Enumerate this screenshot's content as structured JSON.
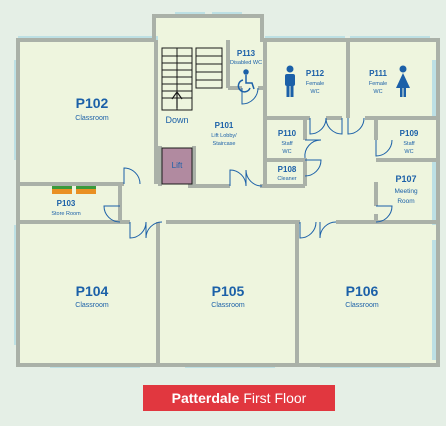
{
  "map": {
    "colors": {
      "background": "#e5efe6",
      "room_fill": "#eef5de",
      "wall": "#aab1a8",
      "window": "#bde0e4",
      "text": "#1b60a8",
      "lift": "#b18aa0",
      "store": "#e99023",
      "title_bg": "#e1373f"
    },
    "rooms": {
      "p102": {
        "id": "P102",
        "name": "Classroom"
      },
      "p113": {
        "id": "P113",
        "name": "Disabled WC"
      },
      "p112": {
        "id": "P112",
        "name": "Female",
        "name2": "WC"
      },
      "p111": {
        "id": "P111",
        "name": "Female",
        "name2": "WC"
      },
      "p101": {
        "id": "P101",
        "name": "Lift Lobby/",
        "name2": "Staircase"
      },
      "down": {
        "label": "Down"
      },
      "lift": {
        "label": "Lift"
      },
      "p110": {
        "id": "P110",
        "name": "Staff",
        "name2": "WC"
      },
      "p108": {
        "id": "P108",
        "name": "Cleaner"
      },
      "p109": {
        "id": "P109",
        "name": "Staff",
        "name2": "WC"
      },
      "p107": {
        "id": "P107",
        "name": "Meeting",
        "name2": "Room"
      },
      "p103": {
        "id": "P103",
        "name": "Store Room"
      },
      "p104": {
        "id": "P104",
        "name": "Classroom"
      },
      "p105": {
        "id": "P105",
        "name": "Classroom"
      },
      "p106": {
        "id": "P106",
        "name": "Classroom"
      }
    },
    "icons": [
      "wheelchair-icon",
      "person-icon",
      "woman-icon"
    ],
    "title": {
      "bold": "Patterdale",
      "rest": "First Floor"
    }
  }
}
